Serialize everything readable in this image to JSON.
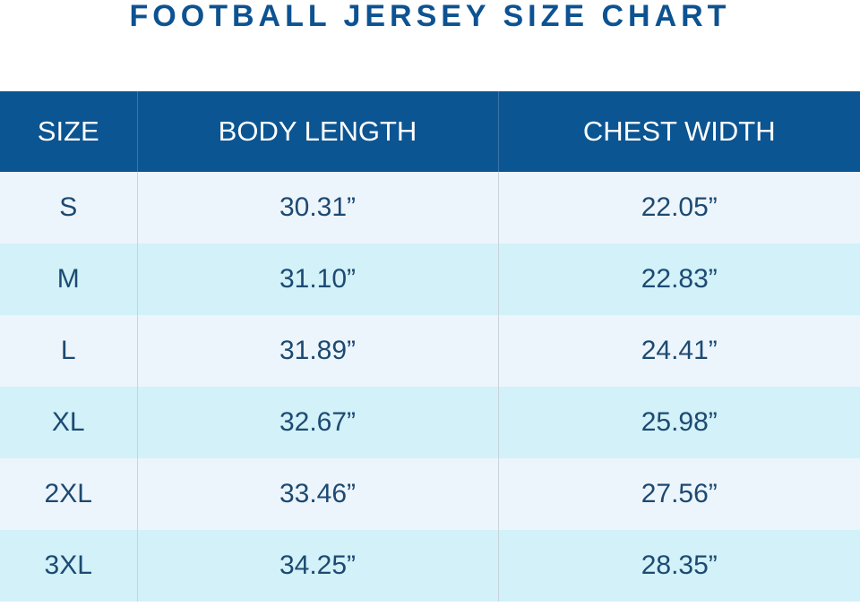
{
  "header": {
    "title": "FOOTBALL JERSEY SIZE CHART"
  },
  "table": {
    "columns": [
      "SIZE",
      "BODY LENGTH",
      "CHEST WIDTH"
    ],
    "rows": [
      [
        "S",
        "30.31”",
        "22.05”"
      ],
      [
        "M",
        "31.10”",
        "22.83”"
      ],
      [
        "L",
        "31.89”",
        "24.41”"
      ],
      [
        "XL",
        "32.67”",
        "25.98”"
      ],
      [
        "2XL",
        "33.46”",
        "27.56”"
      ],
      [
        "3XL",
        "34.25”",
        "28.35”"
      ]
    ]
  }
}
